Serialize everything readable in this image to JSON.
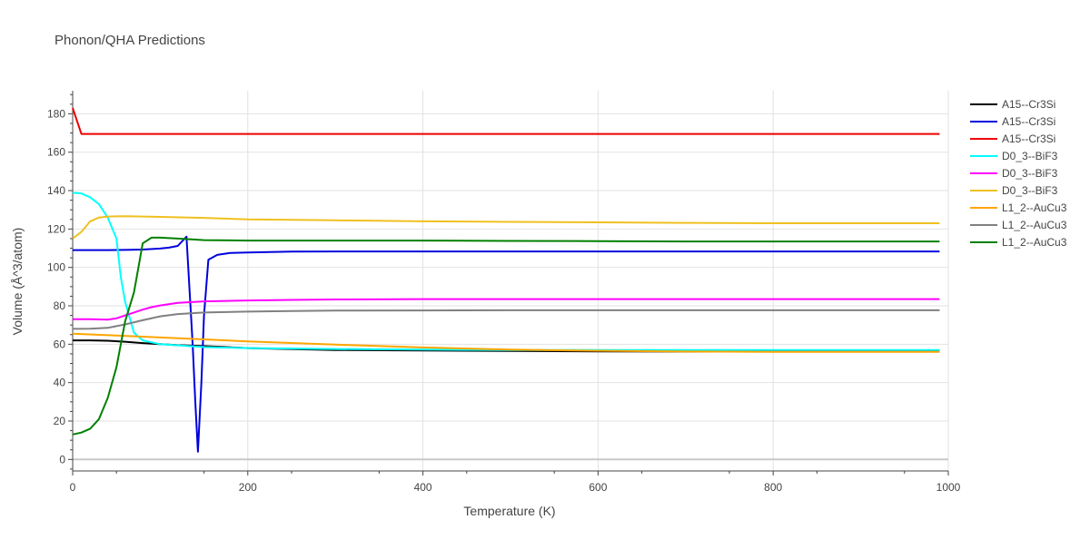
{
  "chart_data": {
    "type": "line",
    "title": "Phonon/QHA Predictions",
    "xlabel": "Temperature (K)",
    "ylabel": "Volume (Å^3/atom)",
    "xlim": [
      0,
      1000
    ],
    "ylim": [
      -6,
      192
    ],
    "x_ticks": [
      0,
      200,
      400,
      600,
      800,
      1000
    ],
    "y_ticks": [
      0,
      20,
      40,
      60,
      80,
      100,
      120,
      140,
      160,
      180
    ],
    "grid": true,
    "legend_position": "right",
    "series": [
      {
        "name": "A15--Cr3Si",
        "color": "#000000",
        "x": [
          0,
          20,
          40,
          60,
          80,
          100,
          120,
          150,
          200,
          300,
          400,
          500,
          600,
          700,
          800,
          900,
          990
        ],
        "y": [
          62,
          62,
          61.8,
          61.3,
          60.6,
          60,
          59.5,
          59,
          58,
          57,
          56.7,
          56.5,
          56.3,
          56.2,
          56.2,
          56.2,
          56.2
        ]
      },
      {
        "name": "A15--Cr3Si",
        "color": "#0000dd",
        "x": [
          0,
          20,
          40,
          60,
          80,
          100,
          110,
          120,
          130,
          137,
          140,
          143,
          147,
          150,
          155,
          165,
          180,
          200,
          250,
          300,
          400,
          500,
          600,
          700,
          800,
          900,
          990
        ],
        "y": [
          109,
          109,
          109,
          109.1,
          109.3,
          109.8,
          110.3,
          111.2,
          116,
          60,
          30,
          4,
          40,
          75,
          104,
          106.5,
          107.5,
          107.8,
          108.2,
          108.3,
          108.3,
          108.3,
          108.3,
          108.3,
          108.3,
          108.3,
          108.3
        ]
      },
      {
        "name": "A15--Cr3Si",
        "color": "#ee0000",
        "x": [
          0,
          10,
          20,
          100,
          200,
          400,
          600,
          800,
          990
        ],
        "y": [
          183,
          169.5,
          169.5,
          169.5,
          169.5,
          169.5,
          169.5,
          169.5,
          169.5
        ]
      },
      {
        "name": "D0_3--BiF3",
        "color": "#00ffff",
        "x": [
          0,
          10,
          20,
          30,
          40,
          50,
          55,
          60,
          70,
          80,
          100,
          150,
          200,
          300,
          400,
          500,
          600,
          700,
          800,
          900,
          990
        ],
        "y": [
          139,
          138.5,
          136.5,
          133,
          126,
          115,
          95,
          82,
          66,
          62,
          60,
          58.5,
          58,
          57.5,
          57.2,
          57,
          57,
          57,
          57,
          57,
          57
        ]
      },
      {
        "name": "D0_3--BiF3",
        "color": "#ff00ff",
        "x": [
          0,
          20,
          40,
          50,
          60,
          70,
          80,
          90,
          100,
          120,
          150,
          200,
          250,
          300,
          400,
          500,
          600,
          700,
          800,
          900,
          990
        ],
        "y": [
          73,
          73,
          72.8,
          73.5,
          75,
          76.5,
          78,
          79.3,
          80.2,
          81.5,
          82.3,
          82.8,
          83.1,
          83.3,
          83.5,
          83.5,
          83.5,
          83.5,
          83.5,
          83.5,
          83.5
        ]
      },
      {
        "name": "D0_3--BiF3",
        "color": "#f0c020",
        "x": [
          0,
          10,
          20,
          30,
          40,
          60,
          100,
          150,
          200,
          300,
          400,
          500,
          600,
          700,
          800,
          900,
          990
        ],
        "y": [
          115,
          118.5,
          124,
          126,
          126.5,
          126.7,
          126.3,
          125.8,
          125,
          124.5,
          124,
          123.7,
          123.5,
          123.2,
          123,
          123,
          123
        ]
      },
      {
        "name": "L1_2--AuCu3",
        "color": "#ffa500",
        "x": [
          0,
          50,
          100,
          150,
          200,
          300,
          400,
          500,
          600,
          700,
          800,
          900,
          990
        ],
        "y": [
          65.5,
          64.5,
          63.5,
          62.5,
          61.5,
          59.8,
          58.3,
          57.2,
          56.6,
          56.2,
          56,
          56,
          56
        ]
      },
      {
        "name": "L1_2--AuCu3",
        "color": "#808080",
        "x": [
          0,
          20,
          40,
          60,
          80,
          100,
          120,
          150,
          200,
          250,
          300,
          400,
          500,
          600,
          700,
          800,
          900,
          990
        ],
        "y": [
          68,
          68.1,
          68.5,
          70.3,
          72.5,
          74.5,
          75.7,
          76.5,
          77,
          77.3,
          77.5,
          77.6,
          77.7,
          77.7,
          77.7,
          77.7,
          77.7,
          77.7
        ]
      },
      {
        "name": "L1_2--AuCu3",
        "color": "#008000",
        "x": [
          0,
          10,
          20,
          30,
          40,
          50,
          60,
          70,
          80,
          90,
          100,
          120,
          150,
          200,
          300,
          400,
          500,
          600,
          700,
          800,
          900,
          990
        ],
        "y": [
          13,
          14,
          16,
          21,
          32,
          48,
          72,
          87,
          112.5,
          115.5,
          115.5,
          115,
          114.2,
          114,
          114,
          114,
          113.8,
          113.7,
          113.5,
          113.5,
          113.5,
          113.5
        ]
      }
    ]
  }
}
